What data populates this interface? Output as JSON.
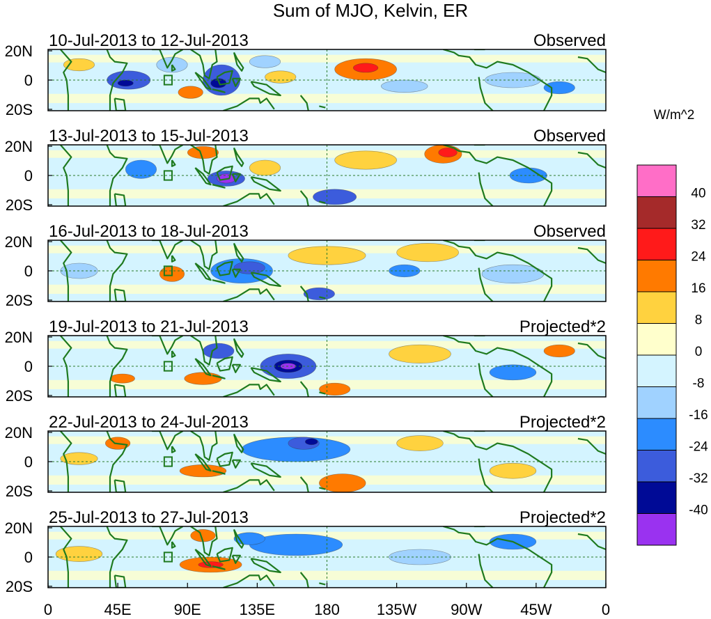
{
  "title": "Sum of MJO, Kelvin, ER",
  "colorbar": {
    "unit_label": "W/m^2",
    "colors": [
      "#ff6ec7",
      "#a52a2a",
      "#ff1a1a",
      "#ff7a00",
      "#ffd23f",
      "#ffffcc",
      "#d4f4ff",
      "#a0d2ff",
      "#2c8cff",
      "#3c5cdc",
      "#000a96",
      "#9a32f0"
    ],
    "tick_labels": [
      "40",
      "32",
      "24",
      "16",
      "8",
      "0",
      "-8",
      "-16",
      "-24",
      "-32",
      "-40"
    ]
  },
  "axes": {
    "y_tick_labels": [
      "20N",
      "0",
      "20S"
    ],
    "x_tick_labels": [
      "0",
      "45E",
      "90E",
      "135E",
      "180",
      "135W",
      "90W",
      "45W",
      "0"
    ]
  },
  "panels": [
    {
      "date_range": "10-Jul-2013 to 12-Jul-2013",
      "kind": "Observed"
    },
    {
      "date_range": "13-Jul-2013 to 15-Jul-2013",
      "kind": "Observed"
    },
    {
      "date_range": "16-Jul-2013 to 18-Jul-2013",
      "kind": "Observed"
    },
    {
      "date_range": "19-Jul-2013 to 21-Jul-2013",
      "kind": "Projected*2"
    },
    {
      "date_range": "22-Jul-2013 to 24-Jul-2013",
      "kind": "Projected*2"
    },
    {
      "date_range": "25-Jul-2013 to 27-Jul-2013",
      "kind": "Projected*2"
    }
  ],
  "map_blobs": [
    [
      {
        "lon": 52,
        "lat": 0,
        "rx": 14,
        "ry": 6,
        "c": 9
      },
      {
        "lon": 50,
        "lat": -2,
        "rx": 5,
        "ry": 2,
        "c": 10
      },
      {
        "lon": 80,
        "lat": 10,
        "rx": 10,
        "ry": 5,
        "c": 7
      },
      {
        "lon": 92,
        "lat": -8,
        "rx": 8,
        "ry": 4,
        "c": 3
      },
      {
        "lon": 112,
        "lat": 0,
        "rx": 12,
        "ry": 10,
        "c": 9
      },
      {
        "lon": 110,
        "lat": -2,
        "rx": 5,
        "ry": 3,
        "c": 10
      },
      {
        "lon": 140,
        "lat": 12,
        "rx": 10,
        "ry": 4,
        "c": 7
      },
      {
        "lon": 150,
        "lat": 2,
        "rx": 10,
        "ry": 4,
        "c": 4
      },
      {
        "lon": 205,
        "lat": 7,
        "rx": 20,
        "ry": 7,
        "c": 3
      },
      {
        "lon": 205,
        "lat": 8,
        "rx": 8,
        "ry": 3,
        "c": 2
      },
      {
        "lon": 230,
        "lat": -4,
        "rx": 15,
        "ry": 4,
        "c": 7
      },
      {
        "lon": 300,
        "lat": 0,
        "rx": 18,
        "ry": 5,
        "c": 7
      },
      {
        "lon": 330,
        "lat": -5,
        "rx": 10,
        "ry": 4,
        "c": 8
      },
      {
        "lon": 20,
        "lat": 10,
        "rx": 10,
        "ry": 4,
        "c": 4
      }
    ],
    [
      {
        "lon": 205,
        "lat": 10,
        "rx": 20,
        "ry": 6,
        "c": 4
      },
      {
        "lon": 255,
        "lat": 14,
        "rx": 12,
        "ry": 6,
        "c": 3
      },
      {
        "lon": 258,
        "lat": 15,
        "rx": 6,
        "ry": 3,
        "c": 2
      },
      {
        "lon": 115,
        "lat": -2,
        "rx": 12,
        "ry": 5,
        "c": 9
      },
      {
        "lon": 115,
        "lat": -2,
        "rx": 6,
        "ry": 3,
        "c": 11
      },
      {
        "lon": 60,
        "lat": 4,
        "rx": 10,
        "ry": 6,
        "c": 8
      },
      {
        "lon": 100,
        "lat": 15,
        "rx": 10,
        "ry": 4,
        "c": 3
      },
      {
        "lon": 185,
        "lat": -14,
        "rx": 14,
        "ry": 5,
        "c": 9
      },
      {
        "lon": 310,
        "lat": 0,
        "rx": 12,
        "ry": 5,
        "c": 8
      },
      {
        "lon": 140,
        "lat": 5,
        "rx": 10,
        "ry": 5,
        "c": 4
      }
    ],
    [
      {
        "lon": 125,
        "lat": 0,
        "rx": 20,
        "ry": 8,
        "c": 8
      },
      {
        "lon": 130,
        "lat": 2,
        "rx": 10,
        "ry": 4,
        "c": 9
      },
      {
        "lon": 80,
        "lat": -2,
        "rx": 8,
        "ry": 5,
        "c": 3
      },
      {
        "lon": 180,
        "lat": 10,
        "rx": 25,
        "ry": 6,
        "c": 4
      },
      {
        "lon": 175,
        "lat": -15,
        "rx": 10,
        "ry": 4,
        "c": 9
      },
      {
        "lon": 245,
        "lat": 12,
        "rx": 20,
        "ry": 6,
        "c": 4
      },
      {
        "lon": 300,
        "lat": -2,
        "rx": 20,
        "ry": 6,
        "c": 7
      },
      {
        "lon": 230,
        "lat": 0,
        "rx": 10,
        "ry": 4,
        "c": 8
      },
      {
        "lon": 20,
        "lat": 0,
        "rx": 12,
        "ry": 5,
        "c": 7
      }
    ],
    [
      {
        "lon": 155,
        "lat": 0,
        "rx": 18,
        "ry": 8,
        "c": 9
      },
      {
        "lon": 155,
        "lat": 0,
        "rx": 9,
        "ry": 4,
        "c": 10
      },
      {
        "lon": 155,
        "lat": 0,
        "rx": 5,
        "ry": 2,
        "c": 11
      },
      {
        "lon": 110,
        "lat": 10,
        "rx": 10,
        "ry": 5,
        "c": 9
      },
      {
        "lon": 48,
        "lat": -8,
        "rx": 8,
        "ry": 3,
        "c": 3
      },
      {
        "lon": 100,
        "lat": -8,
        "rx": 12,
        "ry": 4,
        "c": 3
      },
      {
        "lon": 240,
        "lat": 8,
        "rx": 20,
        "ry": 6,
        "c": 4
      },
      {
        "lon": 330,
        "lat": 10,
        "rx": 10,
        "ry": 4,
        "c": 3
      },
      {
        "lon": 300,
        "lat": -4,
        "rx": 15,
        "ry": 5,
        "c": 8
      },
      {
        "lon": 185,
        "lat": -15,
        "rx": 10,
        "ry": 4,
        "c": 3
      }
    ],
    [
      {
        "lon": 160,
        "lat": 8,
        "rx": 35,
        "ry": 8,
        "c": 8
      },
      {
        "lon": 165,
        "lat": 12,
        "rx": 10,
        "ry": 4,
        "c": 9
      },
      {
        "lon": 170,
        "lat": 13,
        "rx": 4,
        "ry": 2,
        "c": 10
      },
      {
        "lon": 100,
        "lat": -6,
        "rx": 15,
        "ry": 4,
        "c": 3
      },
      {
        "lon": 45,
        "lat": 12,
        "rx": 8,
        "ry": 4,
        "c": 3
      },
      {
        "lon": 190,
        "lat": -14,
        "rx": 15,
        "ry": 6,
        "c": 3
      },
      {
        "lon": 240,
        "lat": 12,
        "rx": 15,
        "ry": 5,
        "c": 4
      },
      {
        "lon": 300,
        "lat": -6,
        "rx": 15,
        "ry": 5,
        "c": 4
      },
      {
        "lon": 20,
        "lat": 2,
        "rx": 12,
        "ry": 4,
        "c": 4
      }
    ],
    [
      {
        "lon": 105,
        "lat": -5,
        "rx": 20,
        "ry": 5,
        "c": 3
      },
      {
        "lon": 105,
        "lat": -5,
        "rx": 8,
        "ry": 2,
        "c": 2
      },
      {
        "lon": 100,
        "lat": 14,
        "rx": 8,
        "ry": 4,
        "c": 3
      },
      {
        "lon": 160,
        "lat": 8,
        "rx": 30,
        "ry": 7,
        "c": 8
      },
      {
        "lon": 20,
        "lat": 2,
        "rx": 15,
        "ry": 5,
        "c": 4
      },
      {
        "lon": 300,
        "lat": 10,
        "rx": 15,
        "ry": 5,
        "c": 8
      },
      {
        "lon": 240,
        "lat": 0,
        "rx": 20,
        "ry": 5,
        "c": 7
      },
      {
        "lon": 130,
        "lat": 12,
        "rx": 10,
        "ry": 4,
        "c": 8
      }
    ]
  ]
}
